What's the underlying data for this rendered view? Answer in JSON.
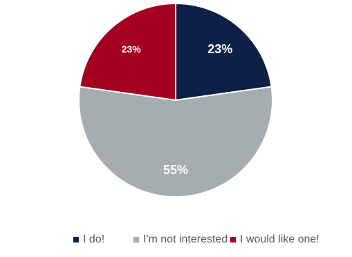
{
  "chart_data": {
    "type": "pie",
    "slices": [
      {
        "name": "I do!",
        "value": 23,
        "label": "23%",
        "color": "#0e2046",
        "label_color": "#ffffff"
      },
      {
        "name": "I'm not interested",
        "value": 55,
        "label": "55%",
        "color": "#a5adb0",
        "label_color": "#ffffff"
      },
      {
        "name": "I would like one!",
        "value": 23,
        "label": "23%",
        "color": "#a50021",
        "label_color": "#ffffff"
      }
    ],
    "start_angle_deg": 0,
    "direction": "clockwise",
    "slice_border_color": "#ffffff",
    "legend_position": "bottom"
  },
  "legend": {
    "items": [
      {
        "label": "I do!",
        "color": "#0e2046"
      },
      {
        "label": "I'm not interested",
        "color": "#a5adb0"
      },
      {
        "label": "I would like one!",
        "color": "#a50021"
      }
    ]
  }
}
